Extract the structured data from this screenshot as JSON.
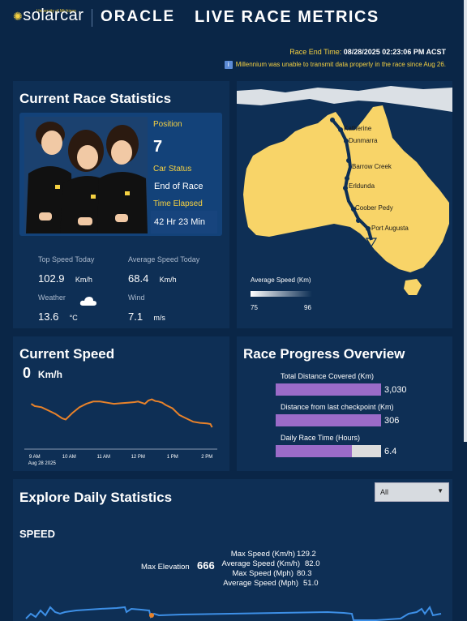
{
  "header": {
    "logo_sub": "University of Michigan",
    "logo_main": "solarcar",
    "partner": "ORACLE",
    "title": "LIVE RACE METRICS"
  },
  "race_end": {
    "label": "Race End Time:",
    "value": "08/28/2025 02:23:06 PM ACST"
  },
  "notice": {
    "text": "Millennium was unable to transmit data properly in the race since Aug 26."
  },
  "stats": {
    "title": "Current Race Statistics",
    "position_label": "Position",
    "position_value": "7",
    "status_label": "Car Status",
    "status_value": "End of Race",
    "elapsed_label": "Time Elapsed",
    "elapsed_value": "42 Hr 23 Min",
    "top_speed_label": "Top Speed Today",
    "top_speed_value": "102.9",
    "top_speed_unit": "Km/h",
    "avg_speed_label": "Average Speed Today",
    "avg_speed_value": "68.4",
    "avg_speed_unit": "Km/h",
    "weather_label": "Weather",
    "weather_value": "13.6",
    "weather_unit": "°C",
    "weather_icon": "cloud-icon",
    "wind_label": "Wind",
    "wind_value": "7.1",
    "wind_unit": "m/s"
  },
  "map": {
    "cities": [
      "Katherine",
      "Dunmarra",
      "Barrow Creek",
      "Erldunda",
      "Coober Pedy",
      "Port Augusta"
    ],
    "legend_title": "Average Speed (Km)",
    "legend_min": "75",
    "legend_max": "96",
    "land_color": "#f8d468",
    "route_color": "#0d2f55"
  },
  "current_speed": {
    "title": "Current Speed",
    "value": "0",
    "unit": "Km/h",
    "line_color": "#e8822a"
  },
  "chart_data": {
    "type": "line",
    "x_labels": [
      "9 AM",
      "10 AM",
      "11 AM",
      "12 PM",
      "1 PM",
      "2 PM"
    ],
    "date_label": "Aug 28 2025",
    "x": [
      8.9,
      9.0,
      9.2,
      9.4,
      9.6,
      9.8,
      9.9,
      10.0,
      10.1,
      10.3,
      10.5,
      10.7,
      10.9,
      11.1,
      11.3,
      11.5,
      11.7,
      11.9,
      12.0,
      12.1,
      12.2,
      12.3,
      12.4,
      12.5,
      12.6,
      12.7,
      12.8,
      13.0,
      13.2,
      13.4,
      13.6,
      13.8,
      14.0,
      14.1,
      14.15
    ],
    "y": [
      78,
      74,
      72,
      66,
      60,
      52,
      50,
      56,
      62,
      72,
      78,
      82,
      82,
      80,
      78,
      79,
      80,
      81,
      82,
      80,
      78,
      84,
      86,
      83,
      82,
      80,
      76,
      70,
      58,
      52,
      46,
      44,
      43,
      42,
      36
    ],
    "ylim": [
      0,
      110
    ],
    "grid": false
  },
  "progress": {
    "title": "Race Progress Overview",
    "bar_color": "#9b6bc8",
    "bars": [
      {
        "label": "Total Distance Covered (Km)",
        "value": "3,030",
        "fraction": 1.0
      },
      {
        "label": "Distance from last checkpoint (Km)",
        "value": "306",
        "fraction": 1.0
      },
      {
        "label": "Daily Race Time (Hours)",
        "value": "6.4",
        "fraction": 0.72
      }
    ]
  },
  "explore": {
    "title": "Explore Daily Statistics",
    "select_value": "All",
    "section": "SPEED",
    "max_elevation_label": "Max Elevation",
    "max_elevation_value": "666",
    "max_speed_kmh_label": "Max Speed (Km/h)",
    "max_speed_kmh_value": "129.2",
    "avg_speed_kmh_label": "Average Speed (Km/h)",
    "avg_speed_kmh_value": "82.0",
    "max_speed_mph_label": "Max Speed (Mph)",
    "max_speed_mph_value": "80.3",
    "avg_speed_mph_label": "Average Speed (Mph)",
    "avg_speed_mph_value": "51.0"
  }
}
